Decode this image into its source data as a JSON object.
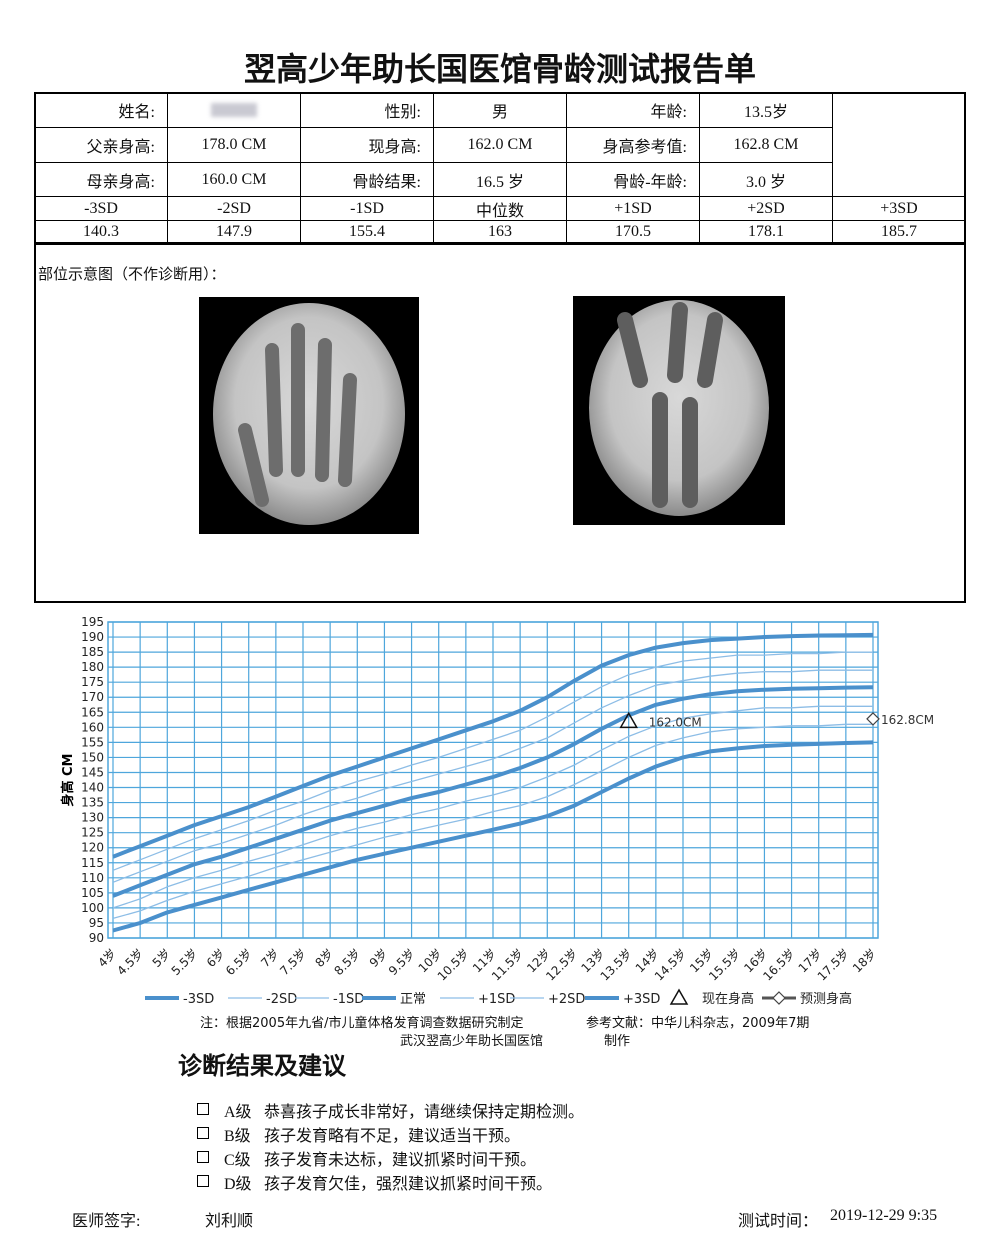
{
  "header": {
    "title": "翌高少年助长国医馆骨龄测试报告单"
  },
  "table": {
    "info_rows": [
      [
        {
          "label": "姓名:"
        },
        {
          "label": "性别:",
          "value": "男"
        },
        {
          "label": "年龄:",
          "value": "13.5岁"
        }
      ],
      [
        {
          "label": "父亲身高:",
          "value": "178.0 CM"
        },
        {
          "label": "现身高:",
          "value": "162.0 CM"
        },
        {
          "label": "身高参考值:",
          "value": "162.8 CM"
        }
      ],
      [
        {
          "label": "母亲身高:",
          "value": "160.0 CM"
        },
        {
          "label": "骨龄结果:",
          "value": "16.5 岁"
        },
        {
          "label": "骨龄-年龄:",
          "value": "3.0 岁"
        }
      ]
    ],
    "sd_header": [
      "-3SD",
      "-2SD",
      "-1SD",
      "中位数",
      "+1SD",
      "+2SD",
      "+3SD"
    ],
    "sd_values": [
      140.3,
      147.9,
      155.4,
      163,
      170.5,
      178.1,
      185.7
    ]
  },
  "images": {
    "caption": "部位示意图（不作诊断用）："
  },
  "chart_data": {
    "type": "line",
    "ylabel": "身高 CM",
    "categories": [
      "4岁",
      "4.5岁",
      "5岁",
      "5.5岁",
      "6岁",
      "6.5岁",
      "7岁",
      "7.5岁",
      "8岁",
      "8.5岁",
      "9岁",
      "9.5岁",
      "10岁",
      "10.5岁",
      "11岁",
      "11.5岁",
      "12岁",
      "12.5岁",
      "13岁",
      "13.5岁",
      "14岁",
      "14.5岁",
      "15岁",
      "15.5岁",
      "16岁",
      "16.5岁",
      "17岁",
      "17.5岁",
      "18岁"
    ],
    "ylim": [
      90,
      195
    ],
    "yticks": [
      90,
      95,
      100,
      105,
      110,
      115,
      120,
      125,
      130,
      135,
      140,
      145,
      150,
      155,
      160,
      165,
      170,
      175,
      180,
      185,
      190,
      195
    ],
    "grid": true,
    "grid_color": "#4ea6dc",
    "series": [
      {
        "name": "-3SD",
        "color": "#4a90cc",
        "width": 4,
        "values": [
          92.5,
          95,
          98.5,
          101,
          103.5,
          106,
          108.5,
          111,
          113.5,
          116,
          118,
          120,
          122,
          124,
          126,
          128,
          130.5,
          134,
          138.5,
          143,
          147,
          150,
          152,
          153,
          153.8,
          154.2,
          154.5,
          154.8,
          155
        ]
      },
      {
        "name": "-2SD",
        "color": "#8dbde6",
        "width": 1.3,
        "values": [
          96.5,
          99,
          102.5,
          105.5,
          108,
          110.5,
          113.5,
          116,
          118.5,
          121,
          123.5,
          125.5,
          127.5,
          129.5,
          132,
          134,
          137,
          141,
          145.5,
          150,
          154,
          156.5,
          158.5,
          159.5,
          160,
          160.5,
          160.5,
          161,
          161
        ]
      },
      {
        "name": "-1SD",
        "color": "#8dbde6",
        "width": 1.3,
        "values": [
          100,
          103,
          107,
          110,
          112.5,
          115.5,
          118,
          121,
          124,
          126.5,
          128.5,
          131,
          133,
          135.5,
          137.5,
          140,
          143.5,
          147.5,
          152.5,
          157,
          160.5,
          163,
          164.5,
          165.5,
          166.5,
          166.5,
          167,
          167,
          167
        ]
      },
      {
        "name": "正常",
        "color": "#4a90cc",
        "width": 4,
        "values": [
          104,
          107.5,
          111,
          114.5,
          117,
          120,
          123,
          126,
          129,
          131.5,
          134,
          136.5,
          138.5,
          141,
          143.5,
          146.5,
          150,
          154.5,
          159.5,
          164,
          167.5,
          169.5,
          171,
          172,
          172.5,
          172.8,
          173,
          173.2,
          173.3
        ]
      },
      {
        "name": "+1SD",
        "color": "#8dbde6",
        "width": 1.3,
        "values": [
          108.5,
          112,
          115.5,
          119,
          121.5,
          124.5,
          127.5,
          131,
          134,
          136.5,
          139.5,
          142,
          144.5,
          147,
          149.5,
          153,
          156.5,
          161.5,
          166.5,
          170.5,
          174,
          175.5,
          177,
          178,
          178.5,
          178.5,
          179,
          179,
          179
        ]
      },
      {
        "name": "+2SD",
        "color": "#8dbde6",
        "width": 1.3,
        "values": [
          112.5,
          116,
          119.5,
          123,
          126,
          129,
          132.5,
          135.5,
          139,
          142,
          144.5,
          147.5,
          150,
          153,
          156,
          159,
          163.5,
          168.5,
          173.5,
          177.5,
          180,
          182,
          183,
          184,
          184,
          184.5,
          184.5,
          185,
          185
        ]
      },
      {
        "name": "+3SD",
        "color": "#4a90cc",
        "width": 4,
        "values": [
          117,
          120.5,
          124,
          127.5,
          130.5,
          133.5,
          137,
          140.5,
          144,
          147,
          150,
          153,
          156,
          159,
          162,
          165.5,
          170,
          175.5,
          180.5,
          184,
          186.5,
          188,
          189,
          189.5,
          190,
          190.3,
          190.5,
          190.6,
          190.7
        ]
      },
      {
        "name": "现在身高",
        "color": "#111111",
        "marker": "triangle",
        "values": [
          null,
          null,
          null,
          null,
          null,
          null,
          null,
          null,
          null,
          null,
          null,
          null,
          null,
          null,
          null,
          null,
          null,
          null,
          null,
          162,
          null,
          null,
          null,
          null,
          null,
          null,
          null,
          null,
          null
        ],
        "value_labels": [
          null,
          null,
          null,
          null,
          null,
          null,
          null,
          null,
          null,
          null,
          null,
          null,
          null,
          null,
          null,
          null,
          null,
          null,
          null,
          "162.0CM",
          null,
          null,
          null,
          null,
          null,
          null,
          null,
          null,
          null
        ]
      },
      {
        "name": "预测身高",
        "color": "#444444",
        "marker": "diamond",
        "values": [
          null,
          null,
          null,
          null,
          null,
          null,
          null,
          null,
          null,
          null,
          null,
          null,
          null,
          null,
          null,
          null,
          null,
          null,
          null,
          null,
          null,
          null,
          null,
          null,
          null,
          null,
          null,
          null,
          162.8
        ],
        "value_labels": [
          null,
          null,
          null,
          null,
          null,
          null,
          null,
          null,
          null,
          null,
          null,
          null,
          null,
          null,
          null,
          null,
          null,
          null,
          null,
          null,
          null,
          null,
          null,
          null,
          null,
          null,
          null,
          null,
          "162.8CM"
        ]
      }
    ]
  },
  "notes": {
    "source": "注：根据2005年九省/市儿童体格发育调查数据研究制定",
    "reference": "参考文献：中华儿科杂志，2009年7期",
    "maker": "武汉翌高少年助长国医馆",
    "made": "制作"
  },
  "diagnosis": {
    "title": "诊断结果及建议",
    "options": [
      {
        "grade": "A级",
        "text": "恭喜孩子成长非常好，请继续保持定期检测。"
      },
      {
        "grade": "B级",
        "text": "孩子发育略有不足，建议适当干预。"
      },
      {
        "grade": "C级",
        "text": "孩子发育未达标，建议抓紧时间干预。"
      },
      {
        "grade": "D级",
        "text": "孩子发育欠佳，强烈建议抓紧时间干预。"
      }
    ]
  },
  "footer": {
    "doctor_label": "医师签字:",
    "doctor": "刘利顺",
    "time_label": "测试时间：",
    "time": "2019-12-29 9:35"
  }
}
